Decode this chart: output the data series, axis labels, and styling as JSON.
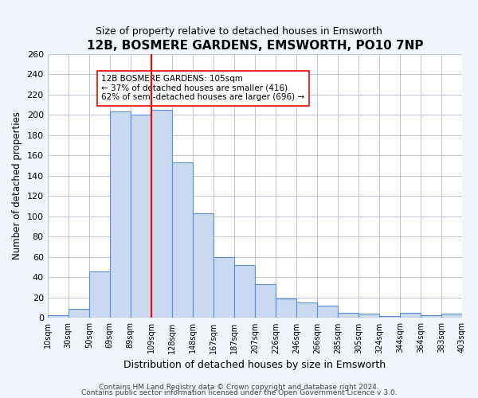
{
  "title": "12B, BOSMERE GARDENS, EMSWORTH, PO10 7NP",
  "subtitle": "Size of property relative to detached houses in Emsworth",
  "xlabel": "Distribution of detached houses by size in Emsworth",
  "ylabel": "Number of detached properties",
  "bin_labels": [
    "10sqm",
    "30sqm",
    "50sqm",
    "69sqm",
    "89sqm",
    "109sqm",
    "128sqm",
    "148sqm",
    "167sqm",
    "187sqm",
    "207sqm",
    "226sqm",
    "246sqm",
    "266sqm",
    "285sqm",
    "305sqm",
    "324sqm",
    "344sqm",
    "364sqm",
    "383sqm",
    "403sqm"
  ],
  "bar_heights": [
    3,
    9,
    46,
    203,
    200,
    205,
    153,
    103,
    60,
    52,
    33,
    19,
    15,
    12,
    5,
    4,
    2,
    5,
    3,
    4
  ],
  "bar_color": "#c9d9ef",
  "bar_edge_color": "#5b8dd9",
  "vline_x": 5,
  "vline_color": "red",
  "annotation_text": "12B BOSMERE GARDENS: 105sqm\n← 37% of detached houses are smaller (416)\n62% of semi-detached houses are larger (696) →",
  "annotation_box_edgecolor": "red",
  "ylim": [
    0,
    260
  ],
  "yticks": [
    0,
    20,
    40,
    60,
    80,
    100,
    120,
    140,
    160,
    180,
    200,
    220,
    240,
    260
  ],
  "footer1": "Contains HM Land Registry data © Crown copyright and database right 2024.",
  "footer2": "Contains public sector information licensed under the Open Government Licence v 3.0.",
  "bg_color": "#f0f4fb",
  "plot_bg_color": "#ffffff",
  "grid_color": "#c0c8d8"
}
